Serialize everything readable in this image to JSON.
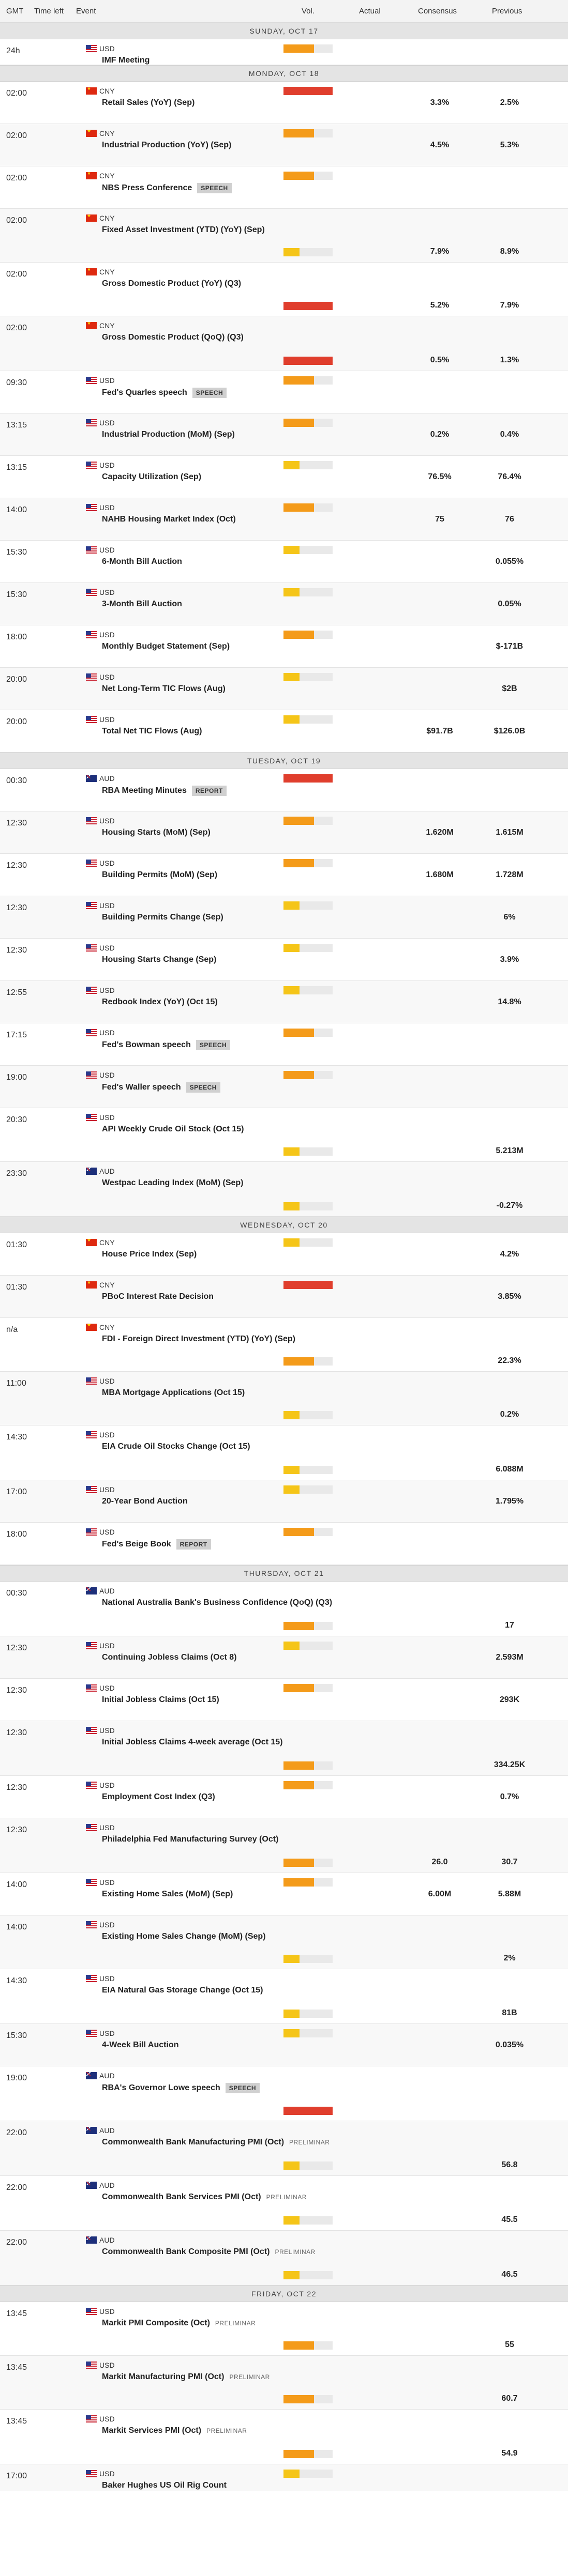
{
  "header": {
    "gmt": "GMT",
    "time_left": "Time left",
    "event": "Event",
    "vol": "Vol.",
    "actual": "Actual",
    "consensus": "Consensus",
    "previous": "Previous"
  },
  "days": [
    {
      "label": "SUNDAY, OCT 17",
      "events": [
        {
          "time": "24h",
          "currency": "USD",
          "name": "IMF Meeting",
          "vol": "med",
          "consensus": "",
          "previous": "",
          "h": 50,
          "layout": "tall"
        }
      ]
    },
    {
      "label": "MONDAY, OCT 18",
      "events": [
        {
          "time": "02:00",
          "currency": "CNY",
          "name": "Retail Sales (YoY) (Sep)",
          "vol": "high",
          "consensus": "3.3%",
          "previous": "2.5%",
          "h": 82,
          "layout": "tall"
        },
        {
          "time": "02:00",
          "currency": "CNY",
          "name": "Industrial Production (YoY) (Sep)",
          "vol": "med",
          "consensus": "4.5%",
          "previous": "5.3%",
          "h": 82,
          "layout": "tall"
        },
        {
          "time": "02:00",
          "currency": "CNY",
          "name": "NBS Press Conference",
          "badge": "SPEECH",
          "vol": "med",
          "consensus": "",
          "previous": "",
          "h": 82,
          "layout": "tall"
        },
        {
          "time": "02:00",
          "currency": "CNY",
          "name": "Fixed Asset Investment (YTD) (YoY) (Sep)",
          "vol": "low",
          "consensus": "7.9%",
          "previous": "8.9%",
          "h": 104,
          "layout": "low"
        },
        {
          "time": "02:00",
          "currency": "CNY",
          "name": "Gross Domestic Product (YoY) (Q3)",
          "vol": "high",
          "consensus": "5.2%",
          "previous": "7.9%",
          "h": 104,
          "layout": "low"
        },
        {
          "time": "02:00",
          "currency": "CNY",
          "name": "Gross Domestic Product (QoQ) (Q3)",
          "vol": "high",
          "consensus": "0.5%",
          "previous": "1.3%",
          "h": 106,
          "layout": "low"
        },
        {
          "time": "09:30",
          "currency": "USD",
          "name": "Fed's Quarles speech",
          "badge": "SPEECH",
          "vol": "med",
          "consensus": "",
          "previous": "",
          "h": 82,
          "layout": "tall"
        },
        {
          "time": "13:15",
          "currency": "USD",
          "name": "Industrial Production (MoM) (Sep)",
          "vol": "med",
          "consensus": "0.2%",
          "previous": "0.4%",
          "h": 82,
          "layout": "tall"
        },
        {
          "time": "13:15",
          "currency": "USD",
          "name": "Capacity Utilization (Sep)",
          "vol": "low",
          "consensus": "76.5%",
          "previous": "76.4%",
          "h": 82,
          "layout": "tall"
        },
        {
          "time": "14:00",
          "currency": "USD",
          "name": "NAHB Housing Market Index (Oct)",
          "vol": "med",
          "consensus": "75",
          "previous": "76",
          "h": 82,
          "layout": "tall"
        },
        {
          "time": "15:30",
          "currency": "USD",
          "name": "6-Month Bill Auction",
          "vol": "low",
          "consensus": "",
          "previous": "0.055%",
          "h": 82,
          "layout": "tall"
        },
        {
          "time": "15:30",
          "currency": "USD",
          "name": "3-Month Bill Auction",
          "vol": "low",
          "consensus": "",
          "previous": "0.05%",
          "h": 82,
          "layout": "tall"
        },
        {
          "time": "18:00",
          "currency": "USD",
          "name": "Monthly Budget Statement (Sep)",
          "vol": "med",
          "consensus": "",
          "previous": "$-171B",
          "h": 82,
          "layout": "tall"
        },
        {
          "time": "20:00",
          "currency": "USD",
          "name": "Net Long-Term TIC Flows (Aug)",
          "vol": "low",
          "consensus": "",
          "previous": "$2B",
          "h": 82,
          "layout": "tall"
        },
        {
          "time": "20:00",
          "currency": "USD",
          "name": "Total Net TIC Flows (Aug)",
          "vol": "low",
          "consensus": "$91.7B",
          "previous": "$126.0B",
          "h": 82,
          "layout": "tall"
        }
      ]
    },
    {
      "label": "TUESDAY, OCT 19",
      "events": [
        {
          "time": "00:30",
          "currency": "AUD",
          "name": "RBA Meeting Minutes",
          "badge": "REPORT",
          "vol": "high",
          "consensus": "",
          "previous": "",
          "h": 82,
          "layout": "tall"
        },
        {
          "time": "12:30",
          "currency": "USD",
          "name": "Housing Starts (MoM) (Sep)",
          "vol": "med",
          "consensus": "1.620M",
          "previous": "1.615M",
          "h": 82,
          "layout": "tall"
        },
        {
          "time": "12:30",
          "currency": "USD",
          "name": "Building Permits (MoM) (Sep)",
          "vol": "med",
          "consensus": "1.680M",
          "previous": "1.728M",
          "h": 82,
          "layout": "tall"
        },
        {
          "time": "12:30",
          "currency": "USD",
          "name": "Building Permits Change (Sep)",
          "vol": "low",
          "consensus": "",
          "previous": "6%",
          "h": 82,
          "layout": "tall"
        },
        {
          "time": "12:30",
          "currency": "USD",
          "name": "Housing Starts Change (Sep)",
          "vol": "low",
          "consensus": "",
          "previous": "3.9%",
          "h": 82,
          "layout": "tall"
        },
        {
          "time": "12:55",
          "currency": "USD",
          "name": "Redbook Index (YoY) (Oct 15)",
          "vol": "low",
          "consensus": "",
          "previous": "14.8%",
          "h": 82,
          "layout": "tall"
        },
        {
          "time": "17:15",
          "currency": "USD",
          "name": "Fed's Bowman speech",
          "badge": "SPEECH",
          "vol": "med",
          "consensus": "",
          "previous": "",
          "h": 82,
          "layout": "tall"
        },
        {
          "time": "19:00",
          "currency": "USD",
          "name": "Fed's Waller speech",
          "badge": "SPEECH",
          "vol": "med",
          "consensus": "",
          "previous": "",
          "h": 82,
          "layout": "tall"
        },
        {
          "time": "20:30",
          "currency": "USD",
          "name": "API Weekly Crude Oil Stock (Oct 15)",
          "vol": "low",
          "consensus": "",
          "previous": "5.213M",
          "h": 104,
          "layout": "low"
        },
        {
          "time": "23:30",
          "currency": "AUD",
          "name": "Westpac Leading Index (MoM) (Sep)",
          "vol": "low",
          "consensus": "",
          "previous": "-0.27%",
          "h": 106,
          "layout": "low"
        }
      ]
    },
    {
      "label": "WEDNESDAY, OCT 20",
      "events": [
        {
          "time": "01:30",
          "currency": "CNY",
          "name": "House Price Index (Sep)",
          "vol": "low",
          "consensus": "",
          "previous": "4.2%",
          "h": 82,
          "layout": "tall"
        },
        {
          "time": "01:30",
          "currency": "CNY",
          "name": "PBoC Interest Rate Decision",
          "vol": "high",
          "consensus": "",
          "previous": "3.85%",
          "h": 82,
          "layout": "tall"
        },
        {
          "time": "n/a",
          "currency": "CNY",
          "name": "FDI - Foreign Direct Investment (YTD) (YoY) (Sep)",
          "vol": "med",
          "consensus": "",
          "previous": "22.3%",
          "h": 104,
          "layout": "low"
        },
        {
          "time": "11:00",
          "currency": "USD",
          "name": "MBA Mortgage Applications (Oct 15)",
          "vol": "low",
          "consensus": "",
          "previous": "0.2%",
          "h": 104,
          "layout": "low"
        },
        {
          "time": "14:30",
          "currency": "USD",
          "name": "EIA Crude Oil Stocks Change (Oct 15)",
          "vol": "low",
          "consensus": "",
          "previous": "6.088M",
          "h": 106,
          "layout": "low"
        },
        {
          "time": "17:00",
          "currency": "USD",
          "name": "20-Year Bond Auction",
          "vol": "low",
          "consensus": "",
          "previous": "1.795%",
          "h": 82,
          "layout": "tall"
        },
        {
          "time": "18:00",
          "currency": "USD",
          "name": "Fed's Beige Book",
          "badge": "REPORT",
          "vol": "med",
          "consensus": "",
          "previous": "",
          "h": 82,
          "layout": "tall"
        }
      ]
    },
    {
      "label": "THURSDAY, OCT 21",
      "events": [
        {
          "time": "00:30",
          "currency": "AUD",
          "name": "National Australia Bank's Business Confidence (QoQ) (Q3)",
          "vol": "med",
          "consensus": "",
          "previous": "17",
          "h": 106,
          "layout": "low"
        },
        {
          "time": "12:30",
          "currency": "USD",
          "name": "Continuing Jobless Claims (Oct 8)",
          "vol": "low",
          "consensus": "",
          "previous": "2.593M",
          "h": 82,
          "layout": "tall"
        },
        {
          "time": "12:30",
          "currency": "USD",
          "name": "Initial Jobless Claims (Oct 15)",
          "vol": "med",
          "consensus": "",
          "previous": "293K",
          "h": 82,
          "layout": "tall"
        },
        {
          "time": "12:30",
          "currency": "USD",
          "name": "Initial Jobless Claims 4-week average (Oct 15)",
          "vol": "med",
          "consensus": "",
          "previous": "334.25K",
          "h": 106,
          "layout": "low"
        },
        {
          "time": "12:30",
          "currency": "USD",
          "name": "Employment Cost Index (Q3)",
          "vol": "med",
          "consensus": "",
          "previous": "0.7%",
          "h": 82,
          "layout": "tall"
        },
        {
          "time": "12:30",
          "currency": "USD",
          "name": "Philadelphia Fed Manufacturing Survey (Oct)",
          "vol": "med",
          "consensus": "26.0",
          "previous": "30.7",
          "h": 106,
          "layout": "low"
        },
        {
          "time": "14:00",
          "currency": "USD",
          "name": "Existing Home Sales (MoM) (Sep)",
          "vol": "med",
          "consensus": "6.00M",
          "previous": "5.88M",
          "h": 82,
          "layout": "tall"
        },
        {
          "time": "14:00",
          "currency": "USD",
          "name": "Existing Home Sales Change (MoM) (Sep)",
          "vol": "low",
          "consensus": "",
          "previous": "2%",
          "h": 104,
          "layout": "low"
        },
        {
          "time": "14:30",
          "currency": "USD",
          "name": "EIA Natural Gas Storage Change (Oct 15)",
          "vol": "low",
          "consensus": "",
          "previous": "81B",
          "h": 106,
          "layout": "low"
        },
        {
          "time": "15:30",
          "currency": "USD",
          "name": "4-Week Bill Auction",
          "vol": "low",
          "consensus": "",
          "previous": "0.035%",
          "h": 82,
          "layout": "tall"
        },
        {
          "time": "19:00",
          "currency": "AUD",
          "name": "RBA's Governor Lowe speech",
          "badge": "SPEECH",
          "vol": "high",
          "consensus": "",
          "previous": "",
          "h": 106,
          "layout": "low"
        },
        {
          "time": "22:00",
          "currency": "AUD",
          "name": "Commonwealth Bank Manufacturing PMI (Oct)",
          "prelim": "PRELIMINAR",
          "vol": "low",
          "consensus": "",
          "previous": "56.8",
          "h": 106,
          "layout": "low"
        },
        {
          "time": "22:00",
          "currency": "AUD",
          "name": "Commonwealth Bank Services PMI (Oct)",
          "prelim": "PRELIMINAR",
          "vol": "low",
          "consensus": "",
          "previous": "45.5",
          "h": 106,
          "layout": "low"
        },
        {
          "time": "22:00",
          "currency": "AUD",
          "name": "Commonwealth Bank Composite PMI (Oct)",
          "prelim": "PRELIMINAR",
          "vol": "low",
          "consensus": "",
          "previous": "46.5",
          "h": 106,
          "layout": "low"
        }
      ]
    },
    {
      "label": "FRIDAY, OCT 22",
      "events": [
        {
          "time": "13:45",
          "currency": "USD",
          "name": "Markit PMI Composite (Oct)",
          "prelim": "PRELIMINAR",
          "vol": "med",
          "consensus": "",
          "previous": "55",
          "h": 104,
          "layout": "low"
        },
        {
          "time": "13:45",
          "currency": "USD",
          "name": "Markit Manufacturing PMI (Oct)",
          "prelim": "PRELIMINAR",
          "vol": "med",
          "consensus": "",
          "previous": "60.7",
          "h": 104,
          "layout": "low"
        },
        {
          "time": "13:45",
          "currency": "USD",
          "name": "Markit Services PMI (Oct)",
          "prelim": "PRELIMINAR",
          "vol": "med",
          "consensus": "",
          "previous": "54.9",
          "h": 106,
          "layout": "low"
        },
        {
          "time": "17:00",
          "currency": "USD",
          "name": "Baker Hughes US Oil Rig Count",
          "vol": "low",
          "consensus": "",
          "previous": "",
          "h": 52,
          "layout": "tall"
        }
      ]
    }
  ]
}
